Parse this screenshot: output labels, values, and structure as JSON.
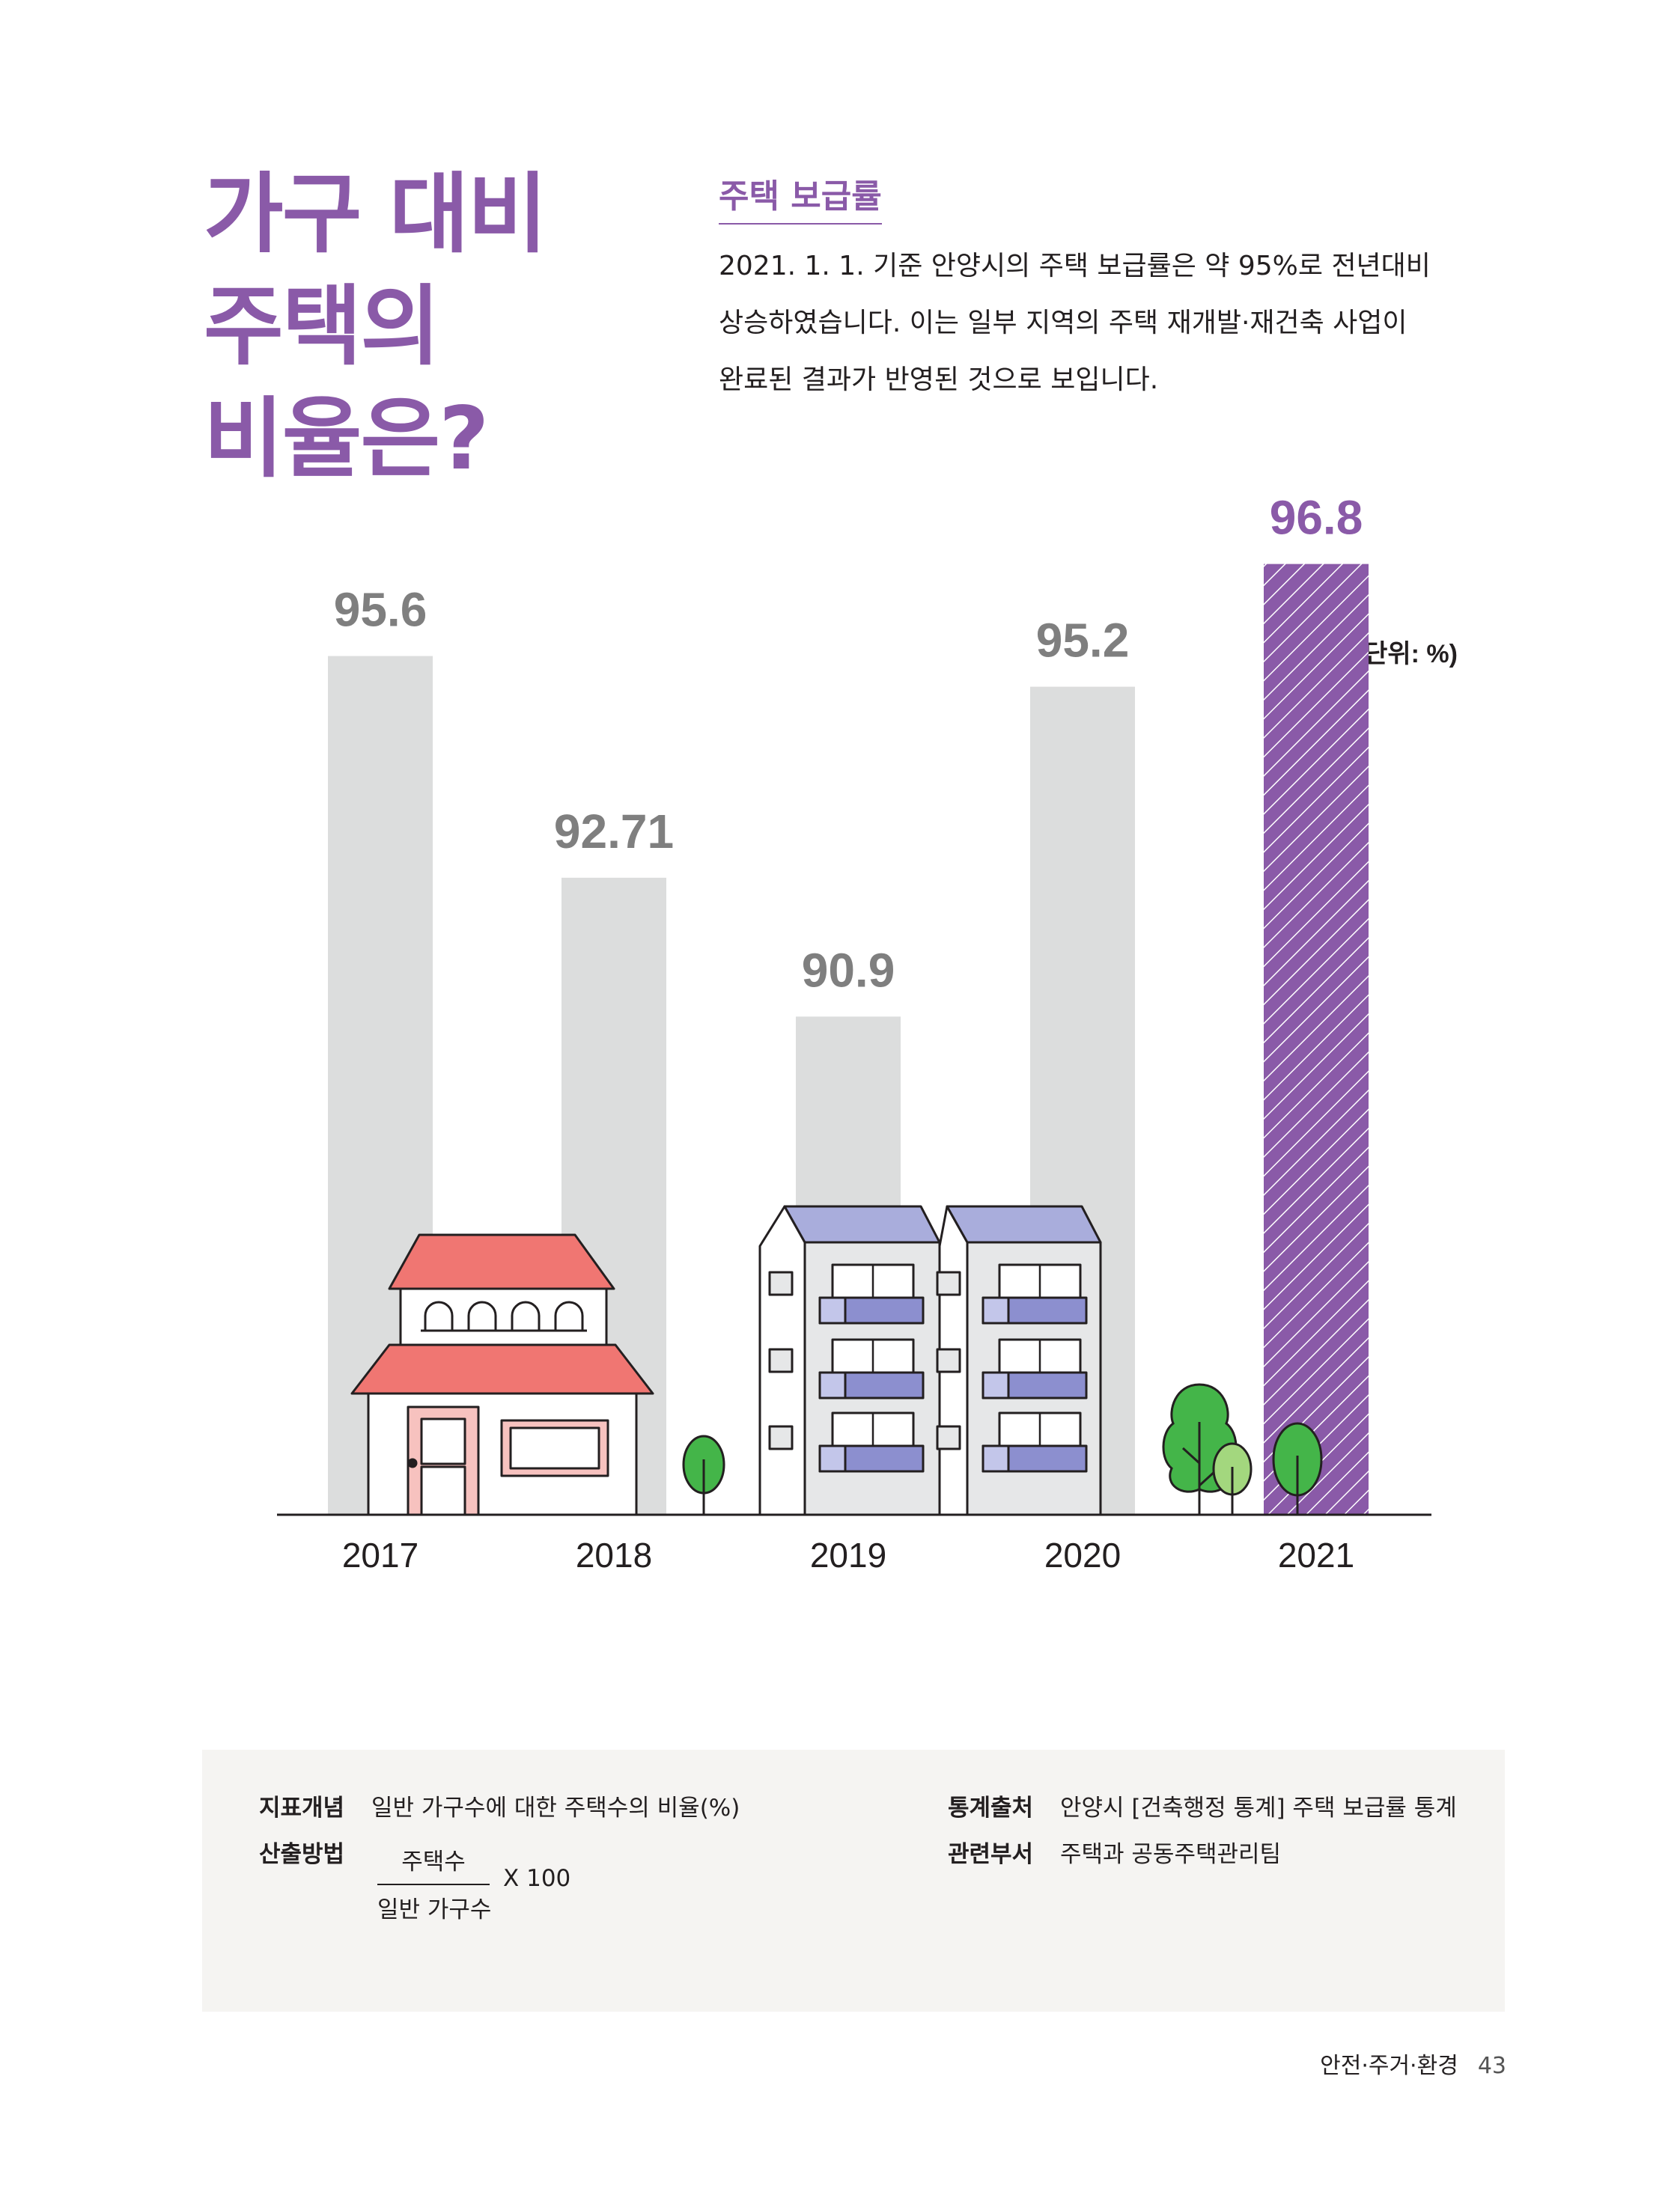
{
  "headline": [
    "가구 대비",
    "주택의",
    "비율은?"
  ],
  "section_title": "주택 보급률",
  "description": [
    "2021. 1. 1. 기준 안양시의 주택 보급률은 약 95%로 전년대비",
    "상승하였습니다. 이는 일부 지역의 주택 재개발·재건축 사업이",
    "완료된 결과가 반영된 것으로 보입니다."
  ],
  "chart_data": {
    "type": "bar",
    "unit_label": "(단위: %)",
    "categories": [
      "2017",
      "2018",
      "2019",
      "2020",
      "2021"
    ],
    "values": [
      95.6,
      92.71,
      90.9,
      95.2,
      96.8
    ],
    "value_labels": [
      "95.6",
      "92.71",
      "90.9",
      "95.2",
      "96.8"
    ],
    "highlight_index": 4,
    "colors": {
      "bar": "#dcdddd",
      "highlight": "#8a5aa8",
      "label": "#7f7f7f",
      "highlight_label": "#8a5aa8"
    }
  },
  "info": {
    "concept_label": "지표개념",
    "concept_value": "일반 가구수에 대한 주택수의 비율(%)",
    "method_label": "산출방법",
    "formula_numerator": "주택수",
    "formula_denominator": "일반 가구수",
    "formula_multiplier": "X 100",
    "source_label": "통계출처",
    "source_value": "안양시 [건축행정 통계] 주택 보급률 통계",
    "dept_label": "관련부서",
    "dept_value": "주택과 공동주택관리팀"
  },
  "footer": {
    "section": "안전·주거·환경",
    "page": "43"
  },
  "colors": {
    "accent": "#8a5aa8",
    "roof_red": "#f07672",
    "roof_blue": "#a9addc",
    "tree_green": "#44b549",
    "tree_light": "#a3d77e"
  }
}
